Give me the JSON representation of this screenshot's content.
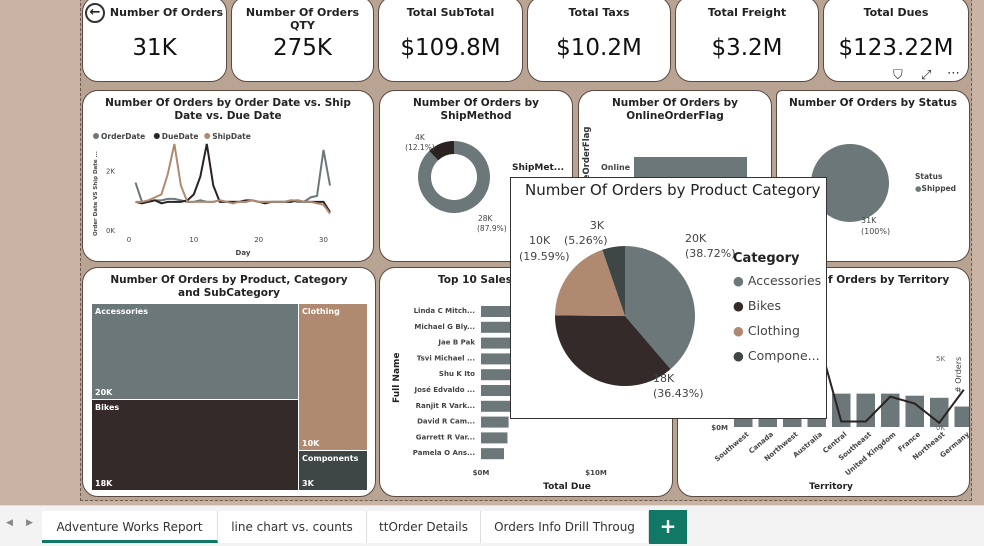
{
  "kpis": [
    {
      "title": "Number Of Orders",
      "value": "31K"
    },
    {
      "title": "Number Of Orders QTY",
      "value": "275K"
    },
    {
      "title": "Total SubTotal",
      "value": "$109.8M"
    },
    {
      "title": "Total Taxs",
      "value": "$10.2M"
    },
    {
      "title": "Total Freight",
      "value": "$3.2M"
    },
    {
      "title": "Total Dues",
      "value": "$123.22M"
    }
  ],
  "back_icon": "arrow-left-circle",
  "visual_header_icons": [
    "filter-icon",
    "focus-mode-icon",
    "more-options-icon"
  ],
  "line_chart": {
    "title": "Number Of Orders by Order Date vs. Ship Date vs. Due Date",
    "ylabel": "Order Date VS Ship Date ...",
    "xlabel": "Day",
    "yticks": [
      "0K",
      "2K"
    ],
    "xticks": [
      "0",
      "10",
      "20",
      "30"
    ],
    "chart_data": {
      "type": "line",
      "x": [
        1,
        2,
        3,
        4,
        5,
        6,
        7,
        8,
        9,
        10,
        11,
        12,
        13,
        14,
        15,
        16,
        17,
        18,
        19,
        20,
        21,
        22,
        23,
        24,
        25,
        26,
        27,
        28,
        29,
        30,
        31
      ],
      "ylim": [
        0,
        3000
      ],
      "series": [
        {
          "name": "OrderDate",
          "color": "#6b7778",
          "values": [
            1600,
            950,
            950,
            1000,
            1000,
            1050,
            1050,
            1000,
            950,
            950,
            1000,
            950,
            950,
            1000,
            950,
            950,
            950,
            950,
            1000,
            950,
            950,
            950,
            950,
            950,
            1000,
            950,
            950,
            1100,
            1150,
            2700,
            1500
          ]
        },
        {
          "name": "DueDate",
          "color": "#2b2222",
          "values": [
            950,
            900,
            950,
            1000,
            900,
            950,
            950,
            950,
            1000,
            1200,
            1800,
            2900,
            1500,
            950,
            950,
            950,
            950,
            1000,
            1000,
            950,
            900,
            950,
            950,
            950,
            950,
            1000,
            950,
            950,
            950,
            950,
            600
          ]
        },
        {
          "name": "ShipDate",
          "color": "#b08a70",
          "values": [
            950,
            950,
            1000,
            1100,
            1200,
            1900,
            2900,
            1500,
            950,
            950,
            950,
            950,
            950,
            1000,
            950,
            900,
            950,
            950,
            1000,
            950,
            950,
            950,
            950,
            950,
            1000,
            1000,
            950,
            950,
            900,
            850,
            550
          ]
        }
      ]
    }
  },
  "ship_method": {
    "title": "Number Of Orders by ShipMethod",
    "legend_title": "ShipMet...",
    "chart_data": {
      "type": "pie",
      "slices": [
        {
          "label": "28K",
          "pct": "(87.9%)",
          "value": 87.9,
          "color": "#6b7778"
        },
        {
          "label": "4K",
          "pct": "(12.1%)",
          "value": 12.1,
          "color": "#2b2222"
        }
      ]
    }
  },
  "online_flag": {
    "title": "Number Of Orders by OnlineOrderFlag",
    "ylabel": "OnlineOrderFlag",
    "category": "Online"
  },
  "status": {
    "title": "Number Of Orders by Status",
    "legend_title": "Status",
    "legend_item": "Shipped",
    "label": "31K",
    "pct": "(100%)"
  },
  "treemap": {
    "title": "Number Of Orders by Product, Category and SubCategory",
    "items": [
      {
        "name": "Accessories",
        "value": "20K"
      },
      {
        "name": "Bikes",
        "value": "18K"
      },
      {
        "name": "Clothing",
        "value": "10K"
      },
      {
        "name": "Components",
        "value": "3K"
      }
    ]
  },
  "top10": {
    "title": "Top 10 Sales P",
    "ylabel": "Full Name",
    "xlabel": "Total Due",
    "xticks": [
      "$0M",
      "$10M"
    ],
    "chart_data": {
      "type": "bar",
      "categories": [
        "Linda C Mitch...",
        "Michael G Bly...",
        "Jae B Pak",
        "Tsvi Michael ...",
        "Shu K Ito",
        "José Edvaldo ...",
        "Ranjit R Vark...",
        "David R Cam...",
        "Garrett R Var...",
        "Pamela O Ans..."
      ],
      "values": [
        5.0,
        4.6,
        4.3,
        3.8,
        3.7,
        3.5,
        3.3,
        2.4,
        2.3,
        2.0
      ],
      "xlim": [
        0,
        10
      ],
      "unit": "$M"
    }
  },
  "territory": {
    "title": "f Orders by Territory",
    "xlabel": "Territory",
    "y2label": "# Orders",
    "yticks_left": [
      "$0M"
    ],
    "yticks_right": [
      "0K",
      "5K"
    ],
    "chart_data": {
      "type": "bar",
      "categories": [
        "Southwest",
        "Canada",
        "Northwest",
        "Australia",
        "Central",
        "Southeast",
        "United Kingdom",
        "France",
        "Northeast",
        "Germany"
      ],
      "bar_values": [
        27,
        18,
        18,
        11,
        8,
        8,
        8,
        7.5,
        7,
        4.9
      ],
      "bar_ylim": [
        0,
        29
      ],
      "line_values": [
        6000,
        4500,
        4500,
        6800,
        400,
        400,
        2200,
        1700,
        300,
        2700
      ],
      "line_ylim": [
        0,
        5000
      ]
    }
  },
  "popup": {
    "title": "Number Of Orders by Product Category",
    "legend_title": "Category",
    "chart_data": {
      "type": "pie",
      "slices": [
        {
          "name": "Accessories",
          "label": "20K",
          "pct": "(38.72%)",
          "value": 38.72,
          "color": "#6b7778"
        },
        {
          "name": "Bikes",
          "label": "18K",
          "pct": "(36.43%)",
          "value": 36.43,
          "color": "#342a2a"
        },
        {
          "name": "Clothing",
          "label": "10K",
          "pct": "(19.59%)",
          "value": 19.59,
          "color": "#b08a70"
        },
        {
          "name": "Compone...",
          "label": "3K",
          "pct": "(5.26%)",
          "value": 5.26,
          "color": "#3f4646"
        }
      ]
    }
  },
  "tabs": [
    {
      "label": "Adventure Works Report",
      "active": true
    },
    {
      "label": "line chart vs. counts"
    },
    {
      "label": "ttOrder Details"
    },
    {
      "label": "Orders Info Drill Throug"
    }
  ],
  "add_tab_label": "+"
}
